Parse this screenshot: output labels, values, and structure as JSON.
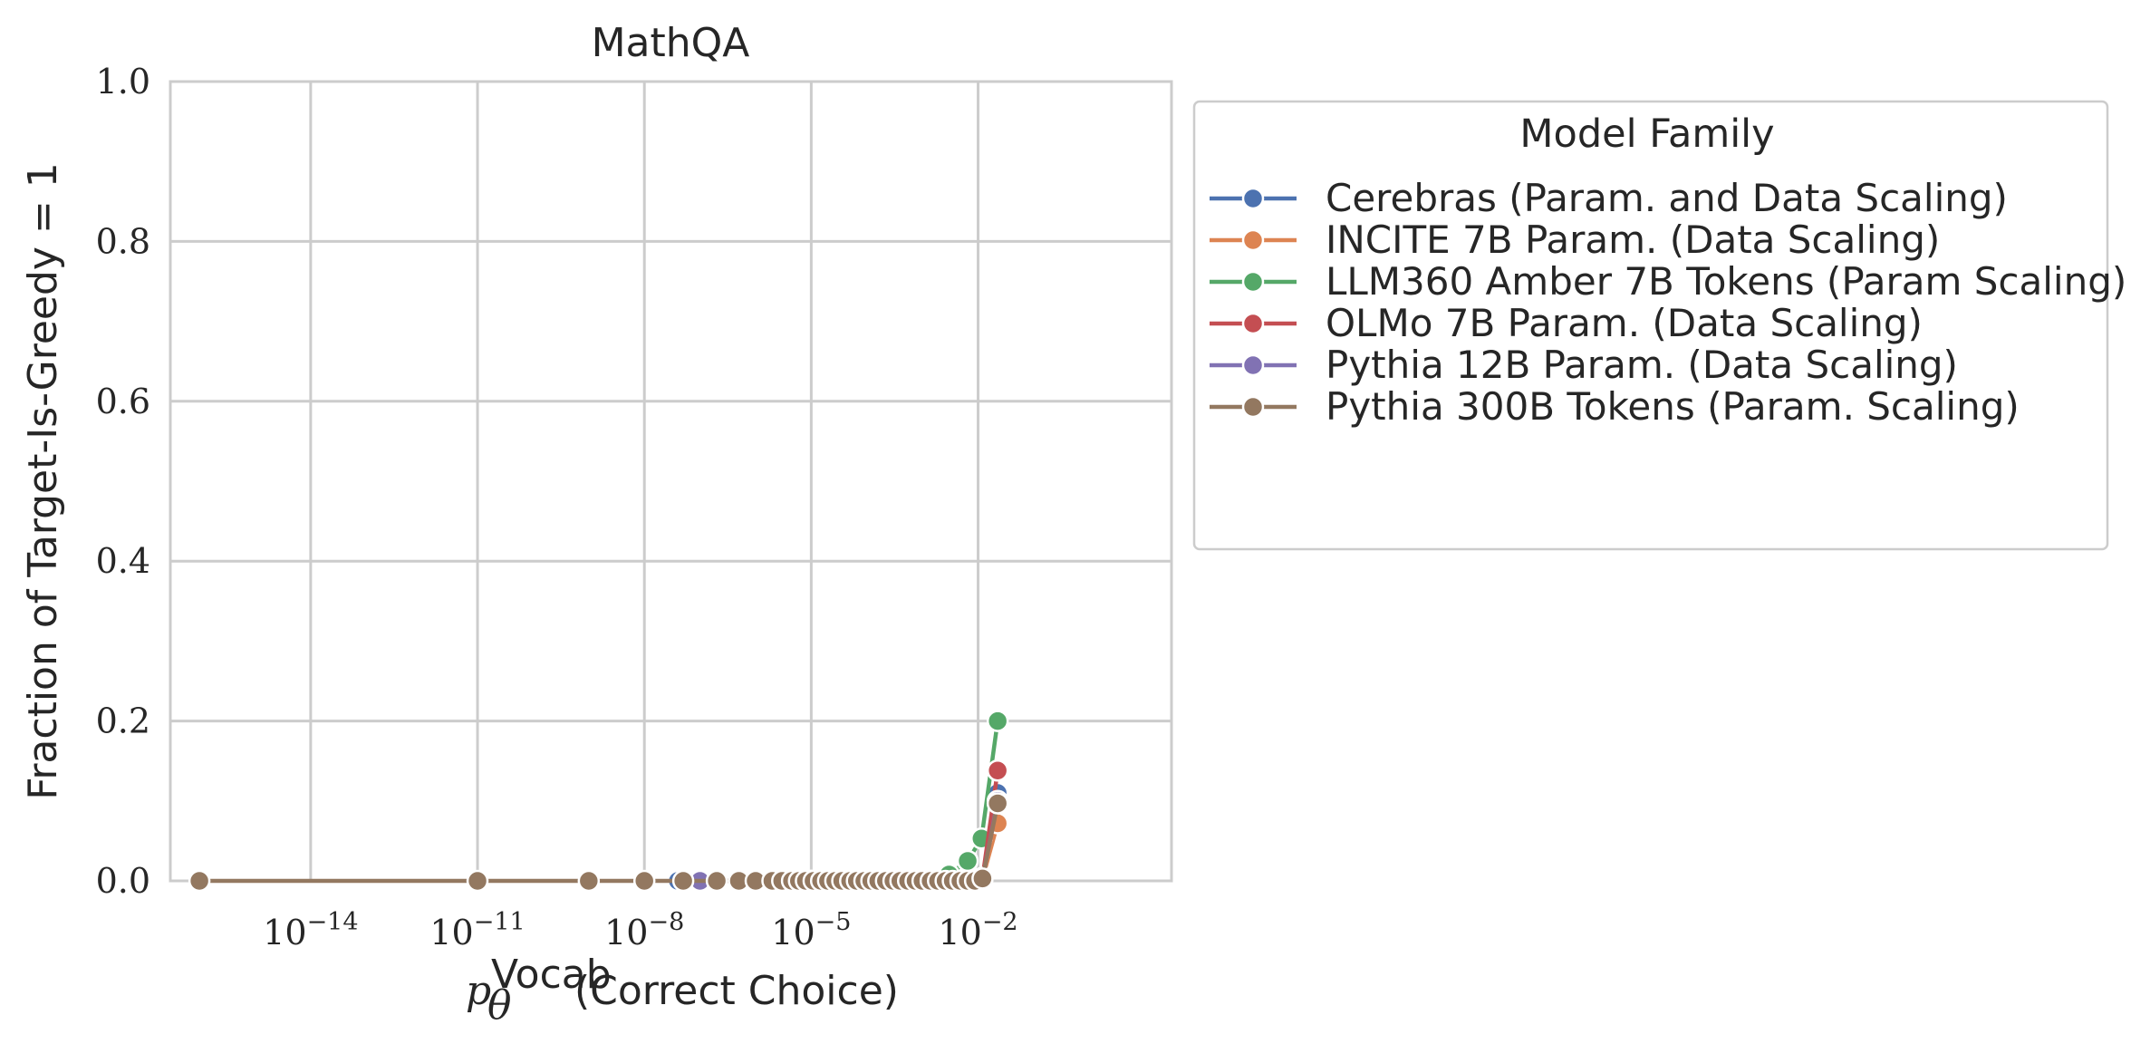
{
  "chart_data": {
    "type": "line",
    "title": "MathQA",
    "xlabel": {
      "base": "p",
      "subscript": "θ",
      "superscript": "Vocab",
      "suffix": "(Correct Choice)"
    },
    "ylabel": "Fraction of Target-Is-Greedy = 1",
    "xscale": "log",
    "xlim": [
      3e-17,
      30
    ],
    "ylim": [
      0,
      1.0
    ],
    "grid": true,
    "x_ticks": [
      {
        "exp": -14,
        "label_base": "10",
        "label_exp": "−14"
      },
      {
        "exp": -11,
        "label_base": "10",
        "label_exp": "−11"
      },
      {
        "exp": -8,
        "label_base": "10",
        "label_exp": "−8"
      },
      {
        "exp": -5,
        "label_base": "10",
        "label_exp": "−5"
      },
      {
        "exp": -2,
        "label_base": "10",
        "label_exp": "−2"
      }
    ],
    "y_ticks": [
      {
        "value": 0.0,
        "label": "0.0"
      },
      {
        "value": 0.2,
        "label": "0.2"
      },
      {
        "value": 0.4,
        "label": "0.4"
      },
      {
        "value": 0.6,
        "label": "0.6"
      },
      {
        "value": 0.8,
        "label": "0.8"
      },
      {
        "value": 1.0,
        "label": "1.0"
      }
    ],
    "legend": {
      "title": "Model Family",
      "placement": "outside-right"
    },
    "series": [
      {
        "name": "Cerebras (Param. and Data Scaling)",
        "color": "#4c72b0",
        "x": [
          4e-08,
          1e-06,
          4e-06,
          2e-05,
          0.0001,
          0.0005,
          0.002,
          0.006,
          0.012,
          0.0225
        ],
        "y": [
          0,
          0,
          0,
          0,
          0,
          0,
          0,
          0,
          0.003,
          0.11
        ]
      },
      {
        "name": "INCITE 7B Param. (Data Scaling)",
        "color": "#dd8452",
        "x": [
          1e-07,
          1e-06,
          1e-05,
          0.0001,
          0.001,
          0.005,
          0.012,
          0.0225
        ],
        "y": [
          0,
          0,
          0,
          0,
          0,
          0,
          0.003,
          0.072
        ]
      },
      {
        "name": "LLM360 Amber 7B Tokens (Param Scaling)",
        "color": "#55a868",
        "x": [
          1e-05,
          0.0001,
          0.001,
          0.003,
          0.0065,
          0.0115,
          0.0225
        ],
        "y": [
          0,
          0,
          0.002,
          0.008,
          0.025,
          0.053,
          0.2
        ]
      },
      {
        "name": "OLMo 7B Param. (Data Scaling)",
        "color": "#c44e52",
        "x": [
          1e-07,
          1e-06,
          1e-05,
          0.0001,
          0.001,
          0.005,
          0.012,
          0.0225
        ],
        "y": [
          0,
          0,
          0,
          0,
          0,
          0,
          0.004,
          0.138
        ]
      },
      {
        "name": "Pythia 12B Param. (Data Scaling)",
        "color": "#8172b3",
        "x": [
          1e-07,
          1e-06,
          1e-05,
          0.0001,
          0.001,
          0.005,
          0.012,
          0.0225
        ],
        "y": [
          0,
          0,
          0,
          0,
          0,
          0,
          0.002,
          0.1
        ]
      },
      {
        "name": "Pythia 300B Tokens (Param. Scaling)",
        "color": "#937860",
        "x": [
          1e-16,
          1e-11,
          1e-09,
          1e-08,
          5e-08,
          2e-07,
          5e-07,
          1e-06,
          2e-06,
          3e-06,
          4.5e-06,
          6e-06,
          8e-06,
          1.1e-05,
          1.5e-05,
          2e-05,
          2.7e-05,
          3.6e-05,
          5e-05,
          6.6e-05,
          9e-05,
          0.00012,
          0.00016,
          0.00022,
          0.0003,
          0.0004,
          0.00055,
          0.00075,
          0.001,
          0.0014,
          0.0019,
          0.0026,
          0.0035,
          0.0048,
          0.0065,
          0.0088,
          0.012,
          0.0225
        ],
        "y": [
          0,
          0,
          0,
          0,
          0,
          0,
          0,
          0,
          0,
          0,
          0,
          0,
          0,
          0,
          0,
          0,
          0,
          0,
          0,
          0,
          0,
          0,
          0,
          0,
          0,
          0,
          0,
          0,
          0,
          0,
          0,
          0,
          0,
          0,
          0,
          0,
          0.003,
          0.097
        ]
      }
    ]
  }
}
